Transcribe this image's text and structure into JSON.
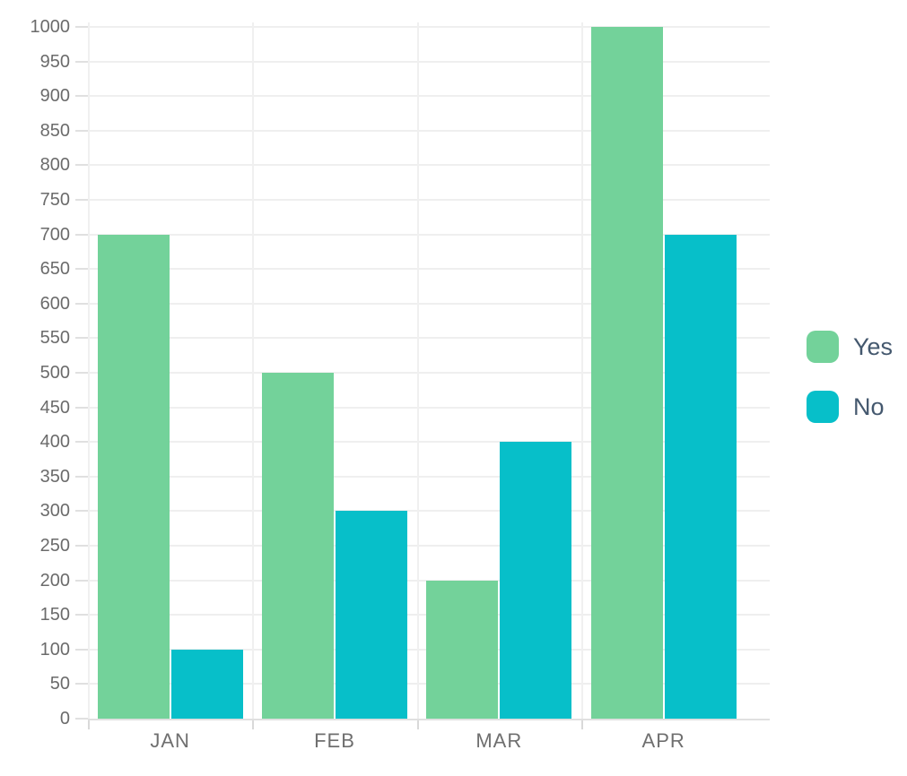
{
  "chart_data": {
    "type": "bar",
    "title": "",
    "categories": [
      "JAN",
      "FEB",
      "MAR",
      "APR"
    ],
    "series": [
      {
        "name": "Yes",
        "color": "#73D29A",
        "values": [
          700,
          500,
          200,
          1000
        ]
      },
      {
        "name": "No",
        "color": "#07BFC9",
        "values": [
          100,
          300,
          400,
          700
        ]
      }
    ],
    "ylim": [
      0,
      1000
    ],
    "ytick_step": 50,
    "grid": true,
    "legend_position": "right"
  },
  "colors": {
    "series_yes": "#73D29A",
    "series_no": "#07BFC9",
    "legend_text": "#44586E",
    "axis_text": "#6B6B6B",
    "gridline": "#EFEFEF",
    "axis_line": "#E0E0E0"
  }
}
